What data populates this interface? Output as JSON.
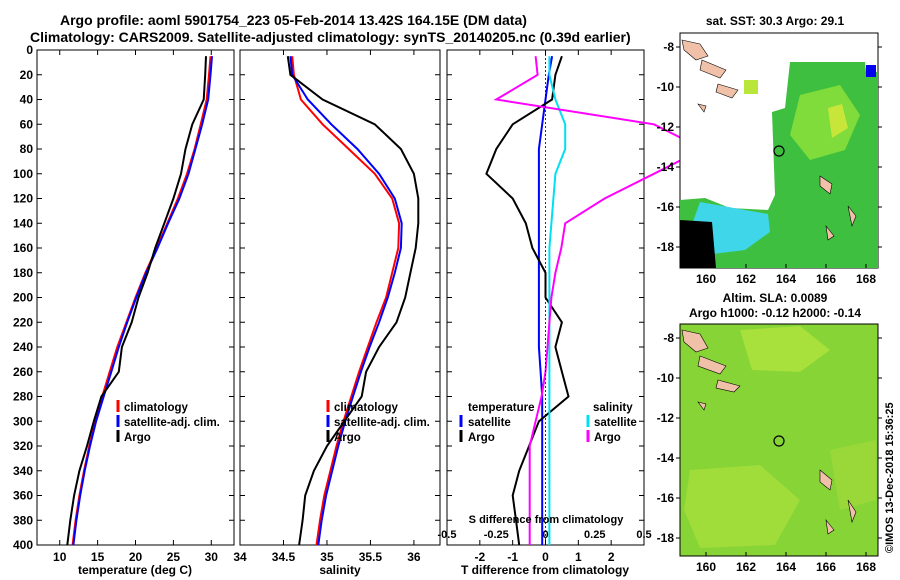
{
  "header": {
    "line1": "Argo profile: aoml 5901754_223 05-Feb-2014 13.42S 164.15E (DM data)",
    "line2": "Climatology: CARS2009. Satellite-adjusted climatology: synTS_20140205.nc (0.39d earlier)"
  },
  "colors": {
    "climatology": "#ff0000",
    "satellite_adj": "#0000ff",
    "argo": "#000000",
    "satellite_s": "#00e0f0",
    "argo_s": "#ff00ff"
  },
  "chart_data": [
    {
      "id": "temperature",
      "type": "line",
      "xlabel": "temperature (deg C)",
      "ylabel": "",
      "xlim": [
        7,
        33
      ],
      "xticks": [
        10,
        15,
        20,
        25,
        30
      ],
      "ylim": [
        0,
        400
      ],
      "yticks": [
        0,
        20,
        40,
        60,
        80,
        100,
        120,
        140,
        160,
        180,
        200,
        220,
        240,
        260,
        280,
        300,
        320,
        340,
        360,
        380,
        400
      ],
      "legend": [
        "climatology",
        "satellite-adj. clim.",
        "Argo"
      ],
      "series": [
        {
          "name": "climatology",
          "depth": [
            5,
            20,
            40,
            60,
            80,
            100,
            120,
            140,
            160,
            180,
            200,
            220,
            240,
            260,
            280,
            300,
            320,
            340,
            360,
            380,
            400
          ],
          "values": [
            29.9,
            29.7,
            29.4,
            28.6,
            27.8,
            26.8,
            25.6,
            24.2,
            22.8,
            21.3,
            20.0,
            18.8,
            17.6,
            16.6,
            15.6,
            14.7,
            13.9,
            13.2,
            12.6,
            12.1,
            11.7
          ]
        },
        {
          "name": "satellite-adj. clim.",
          "depth": [
            5,
            20,
            40,
            60,
            80,
            100,
            120,
            140,
            160,
            180,
            200,
            220,
            240,
            260,
            280,
            300,
            320,
            340,
            360,
            380,
            400
          ],
          "values": [
            30.1,
            29.9,
            29.6,
            28.8,
            27.9,
            27.0,
            25.8,
            24.3,
            22.9,
            21.4,
            20.1,
            18.9,
            17.8,
            16.8,
            15.8,
            14.8,
            14.0,
            13.3,
            12.7,
            12.2,
            11.8
          ]
        },
        {
          "name": "Argo",
          "depth": [
            5,
            20,
            40,
            60,
            80,
            100,
            120,
            140,
            160,
            180,
            200,
            220,
            240,
            260,
            280,
            300,
            320,
            340,
            360,
            380,
            400
          ],
          "values": [
            29.3,
            29.2,
            29.0,
            27.5,
            26.6,
            26.0,
            25.0,
            23.8,
            22.6,
            21.6,
            20.4,
            19.5,
            18.2,
            17.8,
            15.5,
            14.5,
            13.6,
            12.6,
            11.9,
            11.4,
            11.0
          ]
        }
      ]
    },
    {
      "id": "salinity",
      "type": "line",
      "xlabel": "salinity",
      "xlim": [
        34,
        36.3
      ],
      "xticks": [
        34,
        34.5,
        35,
        35.5,
        36
      ],
      "ylim": [
        0,
        400
      ],
      "legend": [
        "climatology",
        "satellite-adj. clim.",
        "Argo"
      ],
      "series": [
        {
          "name": "climatology",
          "depth": [
            5,
            20,
            40,
            60,
            80,
            100,
            120,
            140,
            160,
            180,
            200,
            220,
            240,
            260,
            280,
            300,
            320,
            340,
            360,
            380,
            400
          ],
          "values": [
            34.6,
            34.62,
            34.7,
            34.95,
            35.25,
            35.55,
            35.75,
            35.83,
            35.82,
            35.75,
            35.68,
            35.57,
            35.47,
            35.37,
            35.28,
            35.19,
            35.11,
            35.04,
            34.97,
            34.92,
            34.88
          ]
        },
        {
          "name": "satellite-adj. clim.",
          "depth": [
            5,
            20,
            40,
            60,
            80,
            100,
            120,
            140,
            160,
            180,
            200,
            220,
            240,
            260,
            280,
            300,
            320,
            340,
            360,
            380,
            400
          ],
          "values": [
            34.58,
            34.6,
            34.78,
            35.05,
            35.35,
            35.6,
            35.78,
            35.86,
            35.85,
            35.78,
            35.7,
            35.6,
            35.49,
            35.39,
            35.3,
            35.21,
            35.13,
            35.06,
            34.99,
            34.94,
            34.9
          ]
        },
        {
          "name": "Argo",
          "depth": [
            5,
            20,
            40,
            60,
            80,
            100,
            120,
            140,
            160,
            180,
            200,
            220,
            240,
            260,
            280,
            300,
            320,
            340,
            360,
            380,
            400
          ],
          "values": [
            34.55,
            34.58,
            34.95,
            35.55,
            35.85,
            36.0,
            36.05,
            36.05,
            36.02,
            35.96,
            35.9,
            35.8,
            35.6,
            35.45,
            35.4,
            35.2,
            35.0,
            34.85,
            34.75,
            34.72,
            34.68
          ]
        }
      ]
    },
    {
      "id": "difference",
      "type": "line",
      "xlabel": "T difference from climatology",
      "xlabel_top": "S difference from climatology",
      "xlim": [
        -3,
        3
      ],
      "xticks": [
        -2,
        -1,
        0,
        1,
        2
      ],
      "s_ticks": [
        -0.5,
        -0.25,
        0,
        0.25,
        0.5
      ],
      "s_tick_labels": [
        "-0.5",
        "-0.25",
        "0",
        "0.25",
        "0.5"
      ],
      "ylim": [
        0,
        400
      ],
      "legend_left_title": "temperature",
      "legend_left": [
        "satellite",
        "Argo"
      ],
      "legend_right_title": "salinity",
      "legend_right": [
        "satellite",
        "Argo"
      ],
      "series": [
        {
          "name": "T satellite",
          "depth": [
            5,
            20,
            40,
            60,
            80,
            100,
            120,
            140,
            160,
            180,
            200,
            220,
            240,
            260,
            280,
            300,
            320,
            340,
            360,
            380,
            400
          ],
          "values": [
            0.2,
            0.1,
            0.0,
            -0.1,
            -0.2,
            -0.2,
            -0.2,
            -0.2,
            -0.2,
            -0.2,
            -0.2,
            -0.2,
            -0.2,
            -0.15,
            -0.1,
            -0.1,
            -0.1,
            -0.1,
            -0.1,
            -0.1,
            -0.1
          ]
        },
        {
          "name": "T Argo",
          "depth": [
            5,
            20,
            40,
            60,
            80,
            100,
            120,
            140,
            160,
            180,
            200,
            220,
            240,
            260,
            280,
            300,
            320,
            340,
            360,
            380,
            400
          ],
          "values": [
            0.5,
            0.3,
            0.2,
            -1.0,
            -1.5,
            -1.8,
            -1.0,
            -0.6,
            -0.4,
            0.0,
            0.0,
            0.5,
            0.3,
            0.5,
            0.7,
            -0.2,
            -0.5,
            -0.8,
            -1.0,
            -0.9,
            -0.8
          ]
        },
        {
          "name": "S satellite",
          "depth": [
            5,
            20,
            40,
            60,
            80,
            100,
            120,
            140,
            160,
            180,
            200,
            220,
            240,
            260,
            280,
            300,
            320,
            340,
            360,
            380,
            400
          ],
          "values": [
            0.02,
            0.02,
            0.05,
            0.1,
            0.1,
            0.05,
            0.04,
            0.03,
            0.02,
            0.02,
            0.02,
            0.02,
            0.02,
            0.02,
            0.02,
            0.02,
            0.02,
            0.02,
            0.02,
            0.02,
            0.02
          ]
        },
        {
          "name": "S Argo",
          "depth": [
            5,
            20,
            40,
            60,
            80,
            100,
            120,
            140,
            160,
            180,
            200,
            220,
            240,
            260,
            280,
            300,
            320,
            340,
            360,
            380,
            400
          ],
          "values": [
            -0.05,
            -0.04,
            -0.25,
            0.55,
            0.8,
            0.55,
            0.3,
            0.1,
            0.08,
            0.05,
            0.03,
            0.02,
            0.01,
            0.0,
            -0.02,
            -0.05,
            -0.08,
            -0.08,
            -0.08,
            -0.08,
            -0.08
          ]
        }
      ]
    }
  ],
  "maps": {
    "sst": {
      "title": "sat. SST: 30.3 Argo: 29.1",
      "lon_ticks": [
        "160",
        "162",
        "164",
        "166",
        "168"
      ],
      "lat_ticks": [
        "-8",
        "-10",
        "-12",
        "-14",
        "-16",
        "-18"
      ]
    },
    "sla": {
      "title1": "Altim. SLA: 0.0089",
      "title2": "Argo h1000: -0.12 h2000: -0.14",
      "lon_ticks": [
        "160",
        "162",
        "164",
        "166",
        "168"
      ],
      "lat_ticks": [
        "-8",
        "-10",
        "-12",
        "-14",
        "-16",
        "-18"
      ]
    }
  },
  "footer": {
    "credit": "©IMOS 13-Dec-2018 15:36:25"
  }
}
